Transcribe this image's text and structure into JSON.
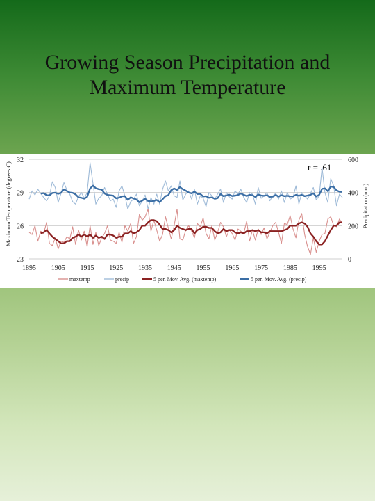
{
  "slide": {
    "title_line1": "Growing Season Precipitation and",
    "title_line2": "Maximum Temperature"
  },
  "chart_data": {
    "type": "line",
    "y_left_label": "Maximum Temperature (degrees C)",
    "y_right_label": "Precipitation (mm)",
    "annotation": "r = .61",
    "x_ticks": [
      "1895",
      "1905",
      "1915",
      "1925",
      "1935",
      "1945",
      "1955",
      "1965",
      "1975",
      "1985",
      "1995"
    ],
    "y_left_ticks": [
      32,
      29,
      26,
      23
    ],
    "y_right_ticks": [
      600,
      400,
      200,
      0
    ],
    "ylim_left": [
      23,
      32
    ],
    "ylim_right": [
      0,
      600
    ],
    "xlim": [
      1895,
      2003
    ],
    "grid": "horizontal",
    "legend_position": "bottom",
    "legend": [
      {
        "label": "maxtemp",
        "color": "#d9908e",
        "axis": "left"
      },
      {
        "label": "precip",
        "color": "#9fbbd8",
        "axis": "right"
      },
      {
        "label": "5 per. Mov. Avg. (maxtemp)",
        "color": "#8b2222",
        "axis": "left"
      },
      {
        "label": "5 per. Mov. Avg. (precip)",
        "color": "#3b6ea5",
        "axis": "right"
      }
    ],
    "x": [
      1895,
      1896,
      1897,
      1898,
      1899,
      1900,
      1901,
      1902,
      1903,
      1904,
      1905,
      1906,
      1907,
      1908,
      1909,
      1910,
      1911,
      1912,
      1913,
      1914,
      1915,
      1916,
      1917,
      1918,
      1919,
      1920,
      1921,
      1922,
      1923,
      1924,
      1925,
      1926,
      1927,
      1928,
      1929,
      1930,
      1931,
      1932,
      1933,
      1934,
      1935,
      1936,
      1937,
      1938,
      1939,
      1940,
      1941,
      1942,
      1943,
      1944,
      1945,
      1946,
      1947,
      1948,
      1949,
      1950,
      1951,
      1952,
      1953,
      1954,
      1955,
      1956,
      1957,
      1958,
      1959,
      1960,
      1961,
      1962,
      1963,
      1964,
      1965,
      1966,
      1967,
      1968,
      1969,
      1970,
      1971,
      1972,
      1973,
      1974,
      1975,
      1976,
      1977,
      1978,
      1979,
      1980,
      1981,
      1982,
      1983,
      1984,
      1985,
      1986,
      1987,
      1988,
      1989,
      1990,
      1991,
      1992,
      1993,
      1994,
      1995,
      1996,
      1997,
      1998,
      1999,
      2000,
      2001,
      2002,
      2003
    ],
    "series": [
      {
        "name": "maxtemp",
        "axis": "left",
        "values": [
          25.4,
          25.2,
          26.0,
          24.6,
          25.5,
          25.3,
          26.3,
          24.4,
          24.2,
          24.9,
          23.9,
          24.6,
          24.5,
          25.0,
          24.8,
          25.9,
          24.3,
          25.6,
          24.7,
          25.5,
          24.1,
          26.0,
          24.3,
          25.4,
          24.2,
          24.9,
          25.3,
          26.0,
          24.7,
          24.6,
          24.4,
          25.4,
          24.5,
          26.0,
          25.5,
          26.2,
          24.4,
          25.0,
          27.0,
          26.5,
          26.8,
          27.5,
          25.5,
          26.5,
          25.6,
          24.6,
          25.2,
          26.8,
          25.8,
          24.8,
          26.0,
          27.5,
          24.8,
          24.7,
          25.6,
          26.0,
          25.5,
          24.9,
          26.2,
          25.9,
          26.7,
          25.3,
          24.8,
          26.0,
          24.7,
          25.4,
          26.3,
          25.9,
          25.0,
          25.6,
          25.3,
          24.7,
          25.7,
          25.5,
          25.3,
          26.4,
          24.6,
          25.6,
          24.7,
          25.7,
          25.2,
          25.8,
          24.8,
          25.4,
          26.0,
          26.3,
          25.4,
          24.4,
          26.2,
          26.1,
          26.9,
          25.7,
          24.9,
          26.5,
          27.1,
          25.2,
          24.1,
          23.4,
          24.9,
          23.6,
          24.6,
          25.2,
          25.3,
          26.6,
          26.8,
          26.0,
          25.9,
          26.6,
          26.2
        ]
      },
      {
        "name": "precip",
        "axis": "right",
        "values": [
          360,
          410,
          385,
          420,
          395,
          370,
          350,
          380,
          465,
          430,
          340,
          395,
          460,
          415,
          390,
          345,
          330,
          375,
          400,
          365,
          400,
          580,
          455,
          330,
          365,
          380,
          430,
          390,
          350,
          360,
          310,
          410,
          440,
          380,
          300,
          345,
          360,
          390,
          320,
          350,
          385,
          300,
          370,
          330,
          390,
          330,
          420,
          470,
          410,
          440,
          380,
          370,
          470,
          355,
          390,
          410,
          360,
          420,
          330,
          380,
          365,
          315,
          400,
          380,
          360,
          390,
          420,
          340,
          400,
          375,
          360,
          410,
          390,
          420,
          370,
          340,
          400,
          390,
          330,
          430,
          365,
          380,
          400,
          350,
          380,
          395,
          360,
          410,
          340,
          400,
          360,
          370,
          440,
          330,
          400,
          380,
          360,
          395,
          430,
          355,
          380,
          550,
          400,
          340,
          485,
          440,
          320,
          390,
          370
        ]
      },
      {
        "name": "5 per. Mov. Avg. (maxtemp)",
        "axis": "left",
        "values": [
          null,
          null,
          null,
          null,
          25.3,
          25.4,
          25.6,
          25.3,
          25.0,
          24.8,
          24.6,
          24.4,
          24.4,
          24.6,
          24.6,
          24.9,
          25.0,
          25.2,
          25.0,
          25.2,
          25.0,
          25.2,
          24.9,
          25.1,
          24.9,
          25.0,
          24.8,
          25.2,
          25.2,
          25.1,
          24.9,
          25.0,
          25.0,
          25.3,
          25.3,
          25.5,
          25.3,
          25.4,
          25.6,
          26.0,
          26.0,
          26.3,
          26.5,
          26.5,
          26.4,
          26.1,
          25.7,
          25.7,
          25.6,
          25.4,
          25.6,
          26.0,
          25.8,
          25.7,
          25.6,
          25.7,
          25.7,
          25.3,
          25.6,
          25.7,
          25.9,
          25.9,
          25.8,
          25.8,
          25.5,
          25.3,
          25.4,
          25.7,
          25.5,
          25.6,
          25.6,
          25.4,
          25.3,
          25.4,
          25.3,
          25.5,
          25.5,
          25.6,
          25.5,
          25.6,
          25.4,
          25.4,
          25.3,
          25.5,
          25.5,
          25.5,
          25.5,
          25.5,
          25.6,
          25.7,
          26.0,
          26.0,
          26.0,
          26.2,
          26.3,
          26.2,
          25.9,
          25.3,
          25.0,
          24.6,
          24.3,
          24.3,
          24.6,
          25.1,
          25.6,
          26.0,
          26.0,
          26.3,
          26.3
        ]
      },
      {
        "name": "5 per. Mov. Avg. (precip)",
        "axis": "right",
        "values": [
          null,
          null,
          null,
          null,
          394,
          396,
          384,
          383,
          397,
          399,
          392,
          398,
          419,
          409,
          400,
          398,
          389,
          371,
          368,
          363,
          374,
          424,
          442,
          426,
          420,
          418,
          394,
          385,
          383,
          381,
          365,
          369,
          377,
          378,
          356,
          371,
          364,
          358,
          341,
          351,
          362,
          349,
          346,
          349,
          355,
          342,
          359,
          378,
          384,
          414,
          424,
          416,
          433,
          420,
          411,
          400,
          395,
          406,
          391,
          392,
          376,
          378,
          368,
          371,
          362,
          366,
          391,
          378,
          382,
          387,
          379,
          381,
          385,
          394,
          386,
          379,
          386,
          384,
          373,
          388,
          382,
          380,
          384,
          374,
          375,
          385,
          376,
          384,
          378,
          380,
          377,
          377,
          386,
          380,
          386,
          378,
          382,
          386,
          395,
          376,
          386,
          422,
          425,
          408,
          436,
          433,
          413,
          405,
          404
        ]
      }
    ]
  }
}
